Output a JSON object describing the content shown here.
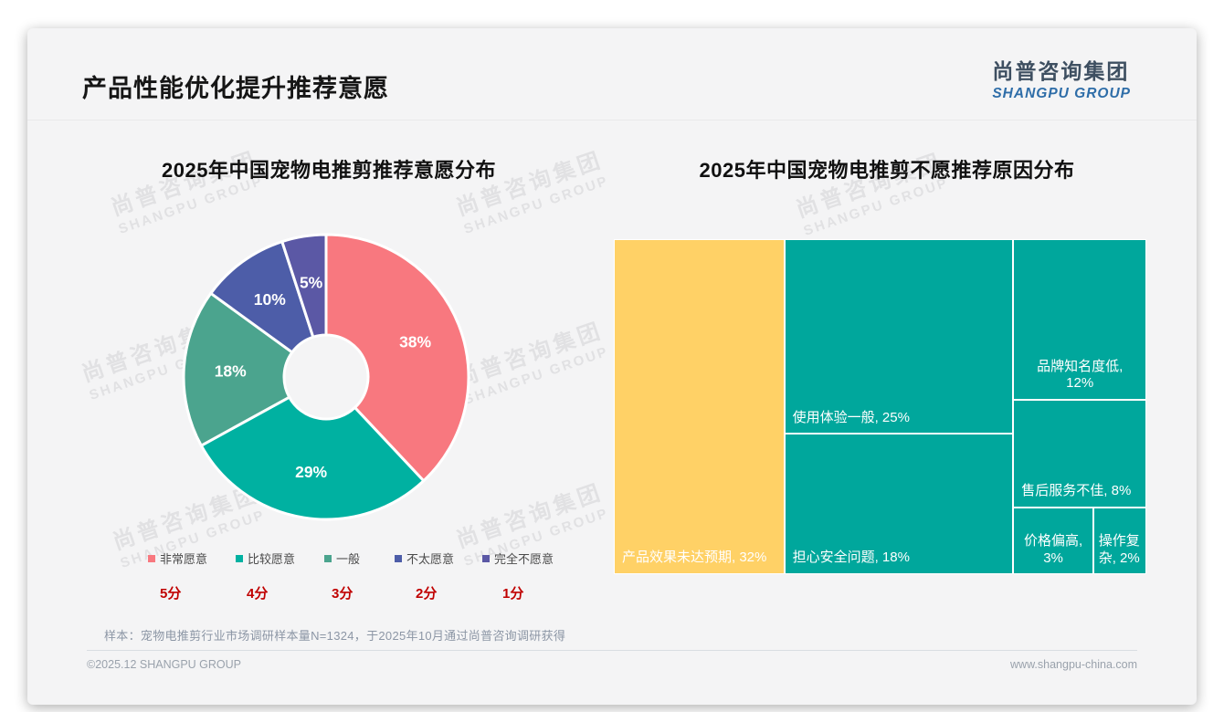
{
  "page": {
    "title": "产品性能优化提升推荐意愿",
    "logo": {
      "cn": "尚普咨询集团",
      "en": "SHANGPU GROUP"
    },
    "watermark": {
      "cn": "尚普咨询集团",
      "en": "SHANGPU GROUP"
    },
    "footnote": "样本：宠物电推剪行业市场调研样本量N=1324，于2025年10月通过尚普咨询调研获得",
    "footer_left": "©2025.12 SHANGPU GROUP",
    "footer_right": "www.shangpu-china.com"
  },
  "chart_data": [
    {
      "type": "pie",
      "subtype": "donut",
      "title": "2025年中国宠物电推剪推荐意愿分布",
      "categories": [
        "非常愿意",
        "比较愿意",
        "一般",
        "不太愿意",
        "完全不愿意"
      ],
      "values": [
        38,
        29,
        18,
        10,
        5
      ],
      "labels": [
        "38%",
        "29%",
        "18%",
        "10%",
        "5%"
      ],
      "scores": [
        "5分",
        "4分",
        "3分",
        "2分",
        "1分"
      ],
      "colors": [
        "#F8787F",
        "#00B1A1",
        "#4BA48E",
        "#4D5DA8",
        "#5B58A5"
      ],
      "score_color": "#C00000",
      "legend_position": "bottom",
      "start_angle_deg": 0,
      "direction": "clockwise"
    },
    {
      "type": "treemap",
      "title": "2025年中国宠物电推剪不愿推荐原因分布",
      "items": [
        {
          "label": "产品效果未达预期",
          "value": 32,
          "value_label": "32%",
          "color": "#FFD166"
        },
        {
          "label": "使用体验一般",
          "value": 25,
          "value_label": "25%",
          "color": "#00A79C"
        },
        {
          "label": "担心安全问题",
          "value": 18,
          "value_label": "18%",
          "color": "#00A79C"
        },
        {
          "label": "品牌知名度低",
          "value": 12,
          "value_label": "12%",
          "color": "#00A79C"
        },
        {
          "label": "售后服务不佳",
          "value": 8,
          "value_label": "8%",
          "color": "#00A79C"
        },
        {
          "label": "价格偏高",
          "value": 3,
          "value_label": "3%",
          "color": "#00A79C"
        },
        {
          "label": "操作复杂",
          "value": 2,
          "value_label": "2%",
          "color": "#00A79C"
        }
      ]
    }
  ]
}
